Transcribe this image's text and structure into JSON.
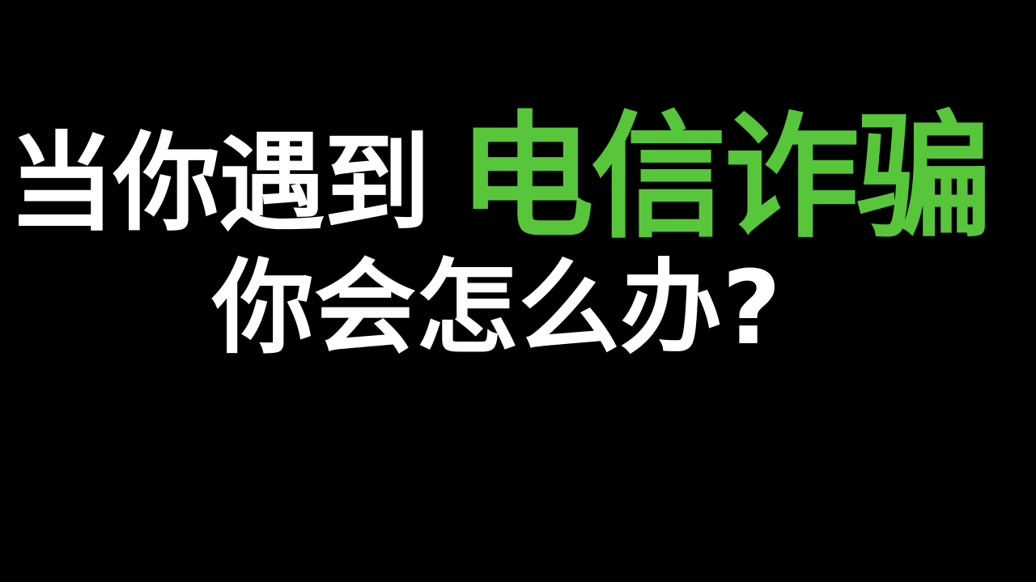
{
  "headline": {
    "part1": "当你遇到",
    "part2_highlight": "电信诈骗",
    "line2": "你会怎么办?"
  },
  "colors": {
    "background": "#000000",
    "text": "#ffffff",
    "highlight": "#57c63a"
  }
}
